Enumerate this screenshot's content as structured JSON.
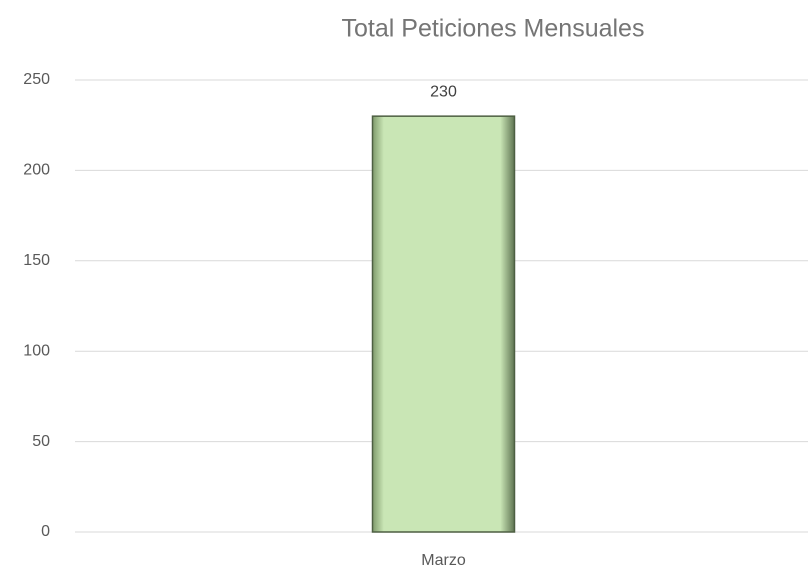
{
  "chart_data": {
    "type": "bar",
    "title": "Total Peticiones Mensuales",
    "categories": [
      "Marzo"
    ],
    "values": [
      230
    ],
    "color": "#c9e6b5",
    "ylim": [
      0,
      250
    ],
    "yticks": [
      0,
      50,
      100,
      150,
      200,
      250
    ],
    "grid": true,
    "data_labels": true
  }
}
